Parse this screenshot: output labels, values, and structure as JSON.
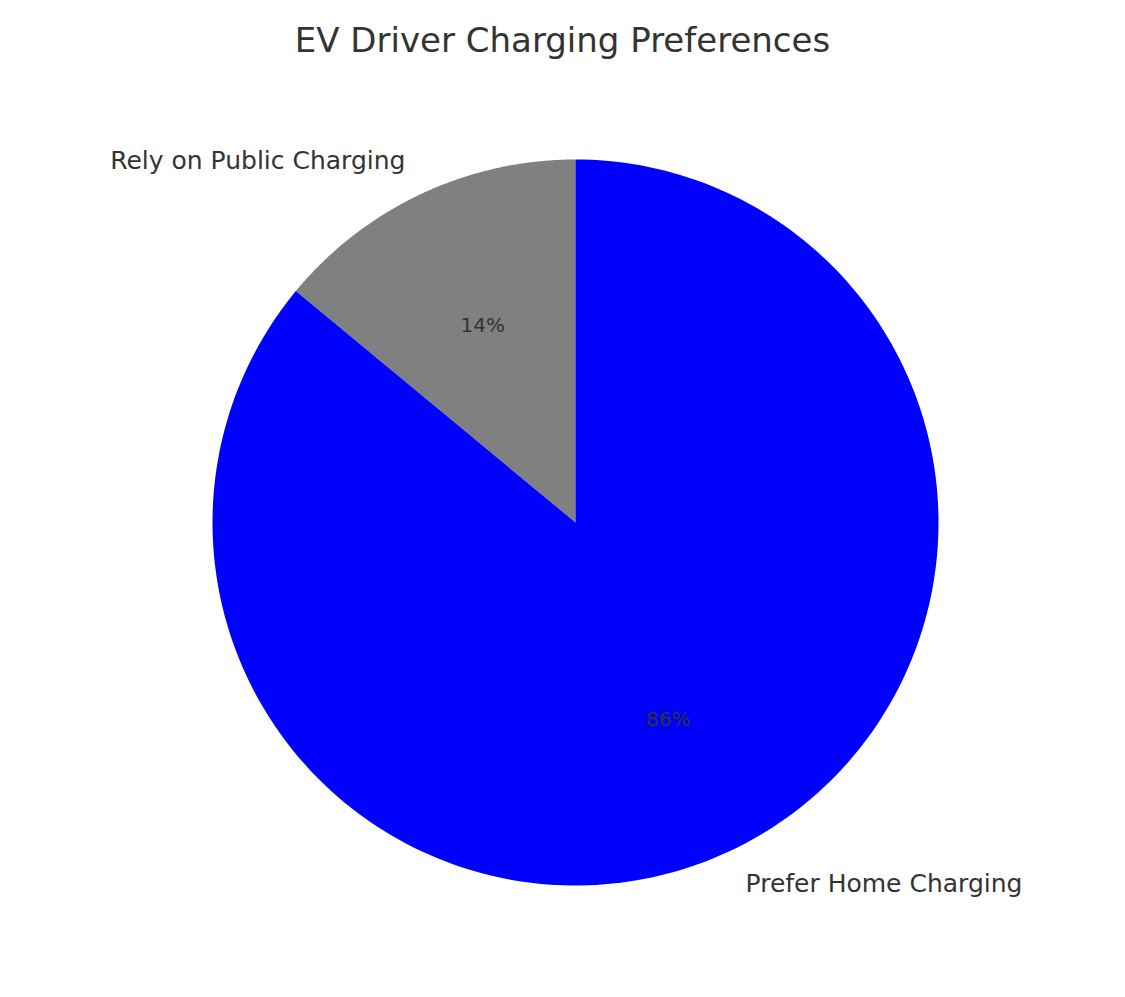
{
  "chart_data": {
    "type": "pie",
    "title": "EV Driver Charging Preferences",
    "categories": [
      "Rely on Public Charging",
      "Prefer Home Charging"
    ],
    "values": [
      14,
      86
    ],
    "value_labels": [
      "14%",
      "86%"
    ],
    "colors": [
      "#808080",
      "#0000ff"
    ],
    "data_labels": true
  }
}
